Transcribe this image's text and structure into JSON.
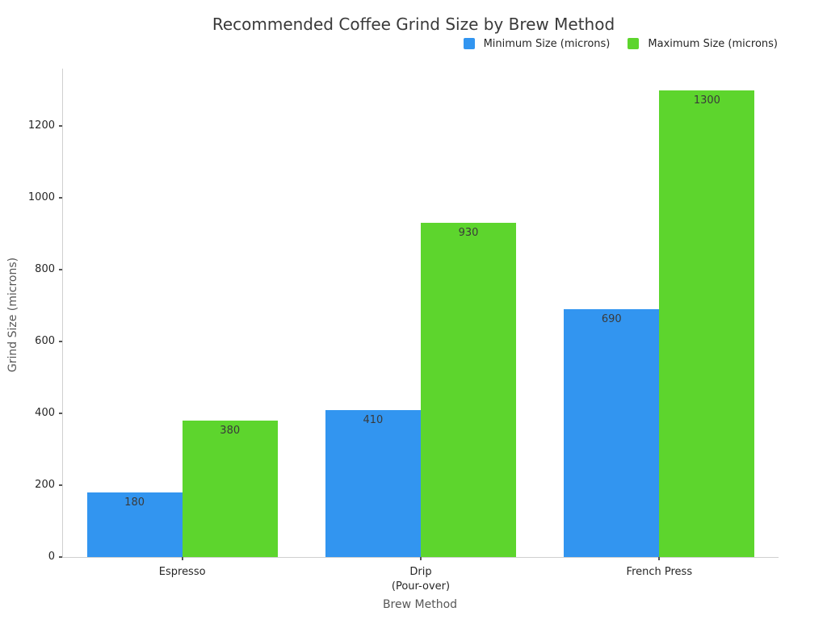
{
  "chart_data": {
    "type": "bar",
    "title": "Recommended Coffee Grind Size by Brew Method",
    "xlabel": "Brew Method",
    "ylabel": "Grind Size (microns)",
    "categories": [
      "Espresso",
      "Drip\n(Pour-over)",
      "French Press"
    ],
    "series": [
      {
        "name": "Minimum Size (microns)",
        "color": "#3295f0",
        "values": [
          180,
          410,
          690
        ]
      },
      {
        "name": "Maximum Size (microns)",
        "color": "#5dd52d",
        "values": [
          380,
          930,
          1300
        ]
      }
    ],
    "ylim": [
      0,
      1360
    ],
    "yticks": [
      0,
      200,
      400,
      600,
      800,
      1000,
      1200
    ],
    "grid": false,
    "legend_position": "top-right",
    "bar_value_labels": true
  }
}
